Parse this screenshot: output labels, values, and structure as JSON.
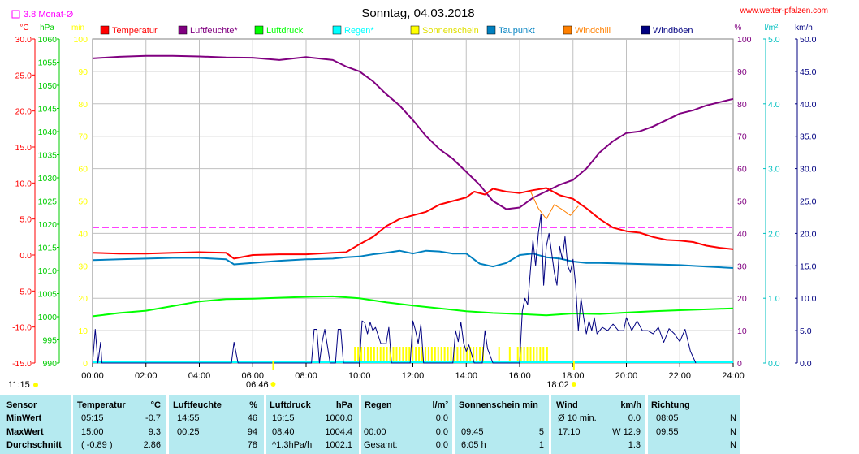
{
  "chart_data": {
    "type": "line",
    "title": "Sonntag, 04.03.2018",
    "site": "www.wetter-pfalzen.com",
    "monthly_avg_label": "3.8 Monat-Ø",
    "monthly_avg_temp": 3.8,
    "x_ticks": [
      "00:00",
      "02:00",
      "04:00",
      "06:00",
      "08:00",
      "10:00",
      "12:00",
      "14:00",
      "16:00",
      "18:00",
      "20:00",
      "22:00",
      "24:00"
    ],
    "sun_labels": {
      "sunrise": "06:46",
      "sunset": "18:02",
      "extra": "11:15"
    },
    "axes": {
      "temp": {
        "unit": "°C",
        "ylim": [
          -15,
          30
        ],
        "ticks": [
          "30.0",
          "25.0",
          "20.0",
          "15.0",
          "10.0",
          "5.0",
          "0.0",
          "-5.0",
          "-10.0",
          "-15.0"
        ]
      },
      "pressure": {
        "unit": "hPa",
        "ylim": [
          990,
          1060
        ],
        "ticks": [
          "1060",
          "1055",
          "1050",
          "1045",
          "1040",
          "1035",
          "1030",
          "1025",
          "1020",
          "1015",
          "1010",
          "1005",
          "1000",
          "995",
          "990"
        ]
      },
      "minutes": {
        "unit": "min",
        "ylim": [
          0,
          100
        ],
        "ticks": [
          "100",
          "90",
          "80",
          "70",
          "60",
          "50",
          "40",
          "30",
          "20",
          "10",
          "0"
        ]
      },
      "humidity": {
        "unit": "%",
        "ylim": [
          0,
          100
        ],
        "ticks": [
          "100",
          "90",
          "80",
          "70",
          "60",
          "50",
          "40",
          "30",
          "20",
          "10",
          "0"
        ]
      },
      "rain": {
        "unit": "l/m²",
        "ylim": [
          0,
          5
        ],
        "ticks": [
          "5.0",
          "4.0",
          "3.0",
          "2.0",
          "1.0",
          "0.0"
        ]
      },
      "wind": {
        "unit": "km/h",
        "ylim": [
          0,
          50
        ],
        "ticks": [
          "50.0",
          "45.0",
          "40.0",
          "35.0",
          "30.0",
          "25.0",
          "20.0",
          "15.0",
          "10.0",
          "5.0",
          "0.0"
        ]
      }
    },
    "legend": [
      {
        "name": "Temperatur",
        "color": "#ff0000"
      },
      {
        "name": "Luftfeuchte*",
        "color": "#800080"
      },
      {
        "name": "Luftdruck",
        "color": "#00ff00"
      },
      {
        "name": "Regen*",
        "color": "#00ffff"
      },
      {
        "name": "Sonnenschein",
        "color": "#ffff00"
      },
      {
        "name": "Taupunkt",
        "color": "#0080c0"
      },
      {
        "name": "Windchill",
        "color": "#ff8000"
      },
      {
        "name": "Windböen",
        "color": "#000080"
      }
    ],
    "series": {
      "temperatur": [
        [
          0,
          0.3
        ],
        [
          1,
          0.2
        ],
        [
          2,
          0.2
        ],
        [
          3,
          0.3
        ],
        [
          4,
          0.4
        ],
        [
          5,
          0.3
        ],
        [
          5.3,
          -0.5
        ],
        [
          6,
          0
        ],
        [
          7,
          0.1
        ],
        [
          8,
          0.1
        ],
        [
          9,
          0.3
        ],
        [
          9.5,
          0.4
        ],
        [
          10,
          1.5
        ],
        [
          10.5,
          2.5
        ],
        [
          11,
          4
        ],
        [
          11.5,
          5
        ],
        [
          12,
          5.5
        ],
        [
          12.5,
          6
        ],
        [
          13,
          7
        ],
        [
          13.5,
          7.5
        ],
        [
          14,
          8
        ],
        [
          14.3,
          8.8
        ],
        [
          14.7,
          8.4
        ],
        [
          15,
          9.2
        ],
        [
          15.5,
          8.8
        ],
        [
          16,
          8.6
        ],
        [
          16.5,
          9.0
        ],
        [
          17,
          9.3
        ],
        [
          17.5,
          8.3
        ],
        [
          18,
          7.8
        ],
        [
          18.5,
          6.5
        ],
        [
          19,
          5
        ],
        [
          19.5,
          3.8
        ],
        [
          20,
          3.3
        ],
        [
          20.5,
          3.1
        ],
        [
          21,
          2.5
        ],
        [
          21.5,
          2.1
        ],
        [
          22,
          2.0
        ],
        [
          22.5,
          1.8
        ],
        [
          23,
          1.3
        ],
        [
          23.5,
          1.0
        ],
        [
          24,
          0.8
        ]
      ],
      "windchill": [
        [
          16.4,
          8.9
        ],
        [
          16.7,
          6.5
        ],
        [
          17.0,
          5.0
        ],
        [
          17.3,
          7.0
        ],
        [
          17.6,
          6.3
        ],
        [
          17.9,
          5.5
        ],
        [
          18.2,
          6.8
        ]
      ],
      "luftfeuchte": [
        [
          0,
          94
        ],
        [
          1,
          94.5
        ],
        [
          2,
          94.8
        ],
        [
          3,
          94.8
        ],
        [
          4,
          94.6
        ],
        [
          5,
          94.3
        ],
        [
          6,
          94.2
        ],
        [
          7,
          93.5
        ],
        [
          8,
          94.4
        ],
        [
          9,
          93.5
        ],
        [
          9.5,
          91.5
        ],
        [
          10,
          90
        ],
        [
          10.5,
          87
        ],
        [
          11,
          83
        ],
        [
          11.5,
          79.5
        ],
        [
          12,
          75
        ],
        [
          12.5,
          70
        ],
        [
          13,
          66
        ],
        [
          13.5,
          63
        ],
        [
          14,
          59
        ],
        [
          14.5,
          55
        ],
        [
          15,
          50
        ],
        [
          15.5,
          47.5
        ],
        [
          16,
          48
        ],
        [
          16.5,
          51
        ],
        [
          17,
          53
        ],
        [
          17.5,
          55
        ],
        [
          18,
          56.5
        ],
        [
          18.5,
          60
        ],
        [
          19,
          65
        ],
        [
          19.5,
          68.5
        ],
        [
          20,
          71
        ],
        [
          20.5,
          71.5
        ],
        [
          21,
          73
        ],
        [
          21.5,
          75
        ],
        [
          22,
          77
        ],
        [
          22.5,
          78
        ],
        [
          23,
          79.5
        ],
        [
          23.5,
          80.5
        ],
        [
          24,
          81.5
        ]
      ],
      "luftdruck": [
        [
          0,
          1000.1
        ],
        [
          1,
          1000.8
        ],
        [
          2,
          1001.3
        ],
        [
          3,
          1002.3
        ],
        [
          4,
          1003.3
        ],
        [
          5,
          1003.8
        ],
        [
          6,
          1003.9
        ],
        [
          7,
          1004.1
        ],
        [
          8,
          1004.3
        ],
        [
          9,
          1004.4
        ],
        [
          10,
          1004.0
        ],
        [
          11,
          1003.1
        ],
        [
          12,
          1002.4
        ],
        [
          13,
          1001.8
        ],
        [
          14,
          1001.2
        ],
        [
          15,
          1000.8
        ],
        [
          16,
          1000.6
        ],
        [
          17,
          1000.3
        ],
        [
          18,
          1000.7
        ],
        [
          19,
          1000.6
        ],
        [
          20,
          1000.9
        ],
        [
          21,
          1001.2
        ],
        [
          22,
          1001.4
        ],
        [
          23,
          1001.6
        ],
        [
          24,
          1001.8
        ]
      ],
      "taupunkt": [
        [
          0,
          -0.7
        ],
        [
          1,
          -0.6
        ],
        [
          2,
          -0.5
        ],
        [
          3,
          -0.4
        ],
        [
          4,
          -0.4
        ],
        [
          5,
          -0.6
        ],
        [
          5.3,
          -1.3
        ],
        [
          6,
          -1.1
        ],
        [
          7,
          -0.8
        ],
        [
          8,
          -0.6
        ],
        [
          9,
          -0.5
        ],
        [
          9.5,
          -0.3
        ],
        [
          10,
          -0.2
        ],
        [
          10.5,
          0.1
        ],
        [
          11,
          0.3
        ],
        [
          11.5,
          0.6
        ],
        [
          12,
          0.2
        ],
        [
          12.5,
          0.6
        ],
        [
          13,
          0.5
        ],
        [
          13.5,
          0.2
        ],
        [
          14,
          0.2
        ],
        [
          14.5,
          -1.2
        ],
        [
          15,
          -1.6
        ],
        [
          15.5,
          -1.1
        ],
        [
          16,
          0
        ],
        [
          16.5,
          0.2
        ],
        [
          17,
          -0.3
        ],
        [
          17.5,
          -0.5
        ],
        [
          18,
          -0.9
        ],
        [
          18.5,
          -1.1
        ],
        [
          19,
          -1.1
        ],
        [
          20,
          -1.2
        ],
        [
          21,
          -1.3
        ],
        [
          22,
          -1.4
        ],
        [
          23,
          -1.6
        ],
        [
          24,
          -1.8
        ]
      ],
      "windboeen": [
        [
          0,
          0
        ],
        [
          0.1,
          5.2
        ],
        [
          0.2,
          0
        ],
        [
          0.3,
          3.2
        ],
        [
          0.35,
          0
        ],
        [
          5.2,
          0
        ],
        [
          5.3,
          3.2
        ],
        [
          5.45,
          0
        ],
        [
          8.2,
          0
        ],
        [
          8.3,
          5.2
        ],
        [
          8.4,
          5.2
        ],
        [
          8.5,
          0
        ],
        [
          8.6,
          3.2
        ],
        [
          8.7,
          5.2
        ],
        [
          8.9,
          0
        ],
        [
          9.1,
          0
        ],
        [
          9.2,
          5.2
        ],
        [
          9.3,
          5.2
        ],
        [
          9.4,
          0
        ],
        [
          10.0,
          0
        ],
        [
          10.1,
          6.5
        ],
        [
          10.2,
          6.2
        ],
        [
          10.3,
          4.5
        ],
        [
          10.4,
          6.3
        ],
        [
          10.5,
          5
        ],
        [
          10.6,
          5.5
        ],
        [
          10.8,
          3
        ],
        [
          11.0,
          3
        ],
        [
          11.1,
          5.5
        ],
        [
          11.2,
          0
        ],
        [
          11.9,
          0
        ],
        [
          12.0,
          6.5
        ],
        [
          12.1,
          5
        ],
        [
          12.2,
          3
        ],
        [
          12.3,
          6.0
        ],
        [
          12.4,
          0
        ],
        [
          13.5,
          0
        ],
        [
          13.6,
          5
        ],
        [
          13.7,
          3.3
        ],
        [
          13.8,
          6.3
        ],
        [
          13.9,
          3.1
        ],
        [
          14.0,
          1.8
        ],
        [
          14.1,
          2.8
        ],
        [
          14.3,
          0
        ],
        [
          14.6,
          0
        ],
        [
          14.7,
          5
        ],
        [
          14.8,
          2.2
        ],
        [
          15.0,
          0
        ],
        [
          16.0,
          0
        ],
        [
          16.1,
          8
        ],
        [
          16.2,
          10
        ],
        [
          16.3,
          9
        ],
        [
          16.4,
          14
        ],
        [
          16.5,
          19
        ],
        [
          16.6,
          15
        ],
        [
          16.7,
          20
        ],
        [
          16.8,
          23
        ],
        [
          16.9,
          12
        ],
        [
          17.0,
          18
        ],
        [
          17.1,
          20
        ],
        [
          17.3,
          14
        ],
        [
          17.4,
          12
        ],
        [
          17.5,
          18
        ],
        [
          17.6,
          16
        ],
        [
          17.7,
          19.5
        ],
        [
          17.8,
          15
        ],
        [
          17.9,
          14
        ],
        [
          18.0,
          16
        ],
        [
          18.1,
          12
        ],
        [
          18.2,
          5
        ],
        [
          18.3,
          10
        ],
        [
          18.4,
          7
        ],
        [
          18.5,
          4.5
        ],
        [
          18.6,
          6.5
        ],
        [
          18.7,
          5
        ],
        [
          18.8,
          7
        ],
        [
          18.9,
          4.5
        ],
        [
          19.1,
          5.5
        ],
        [
          19.3,
          5
        ],
        [
          19.5,
          6
        ],
        [
          19.7,
          5
        ],
        [
          19.9,
          5
        ],
        [
          20.0,
          7
        ],
        [
          20.2,
          5
        ],
        [
          20.4,
          6.5
        ],
        [
          20.6,
          5
        ],
        [
          20.8,
          5
        ],
        [
          21.0,
          4.5
        ],
        [
          21.2,
          5.5
        ],
        [
          21.4,
          3.2
        ],
        [
          21.6,
          5.3
        ],
        [
          21.8,
          4.5
        ],
        [
          22.0,
          3.3
        ],
        [
          22.2,
          5.2
        ],
        [
          22.4,
          1.8
        ],
        [
          22.6,
          0
        ]
      ]
    },
    "windchill_shown": true,
    "sun_minutes_blocks": [
      [
        9.8,
        14.7
      ],
      [
        15.2,
        15.3
      ],
      [
        15.6,
        15.7
      ],
      [
        15.9,
        16.9
      ],
      [
        17.0,
        17.1
      ]
    ],
    "table": {
      "headers": [
        "Sensor",
        "Temperatur",
        "°C",
        "Luftfeuchte",
        "%",
        "Luftdruck",
        "hPa",
        "Regen",
        "l/m²",
        "Sonnenschein min",
        "Wind",
        "km/h",
        "Richtung"
      ],
      "rows": [
        {
          "label": "MinWert",
          "temp_time": "05:15",
          "temp_val": "-0.7",
          "hum_time": "14:55",
          "hum_val": "46",
          "press_time": "16:15",
          "press_val": "1000.0",
          "rain_time": "",
          "rain_val": "0.0",
          "sun_time": "",
          "sun_val": "",
          "wind_time": "Ø 10 min.",
          "wind_val": "0.0",
          "dir_time": "08:05",
          "dir_val": "N"
        },
        {
          "label": "MaxWert",
          "temp_time": "15:00",
          "temp_val": "9.3",
          "hum_time": "00:25",
          "hum_val": "94",
          "press_time": "08:40",
          "press_val": "1004.4",
          "rain_time": "00:00",
          "rain_val": "0.0",
          "sun_time": "09:45",
          "sun_val": "5",
          "wind_time": "17:10",
          "wind_val": "W 12.9",
          "dir_time": "09:55",
          "dir_val": "N"
        },
        {
          "label": "Durchschnitt",
          "temp_time": "( -0.89 )",
          "temp_val": "2.86",
          "hum_time": "",
          "hum_val": "78",
          "press_time": "^1.3hPa/h",
          "press_val": "1002.1",
          "rain_time": "Gesamt:",
          "rain_val": "0.0",
          "sun_time": "6:05 h",
          "sun_val": "1",
          "wind_time": "",
          "wind_val": "1.3",
          "dir_time": "",
          "dir_val": "N"
        }
      ]
    }
  }
}
